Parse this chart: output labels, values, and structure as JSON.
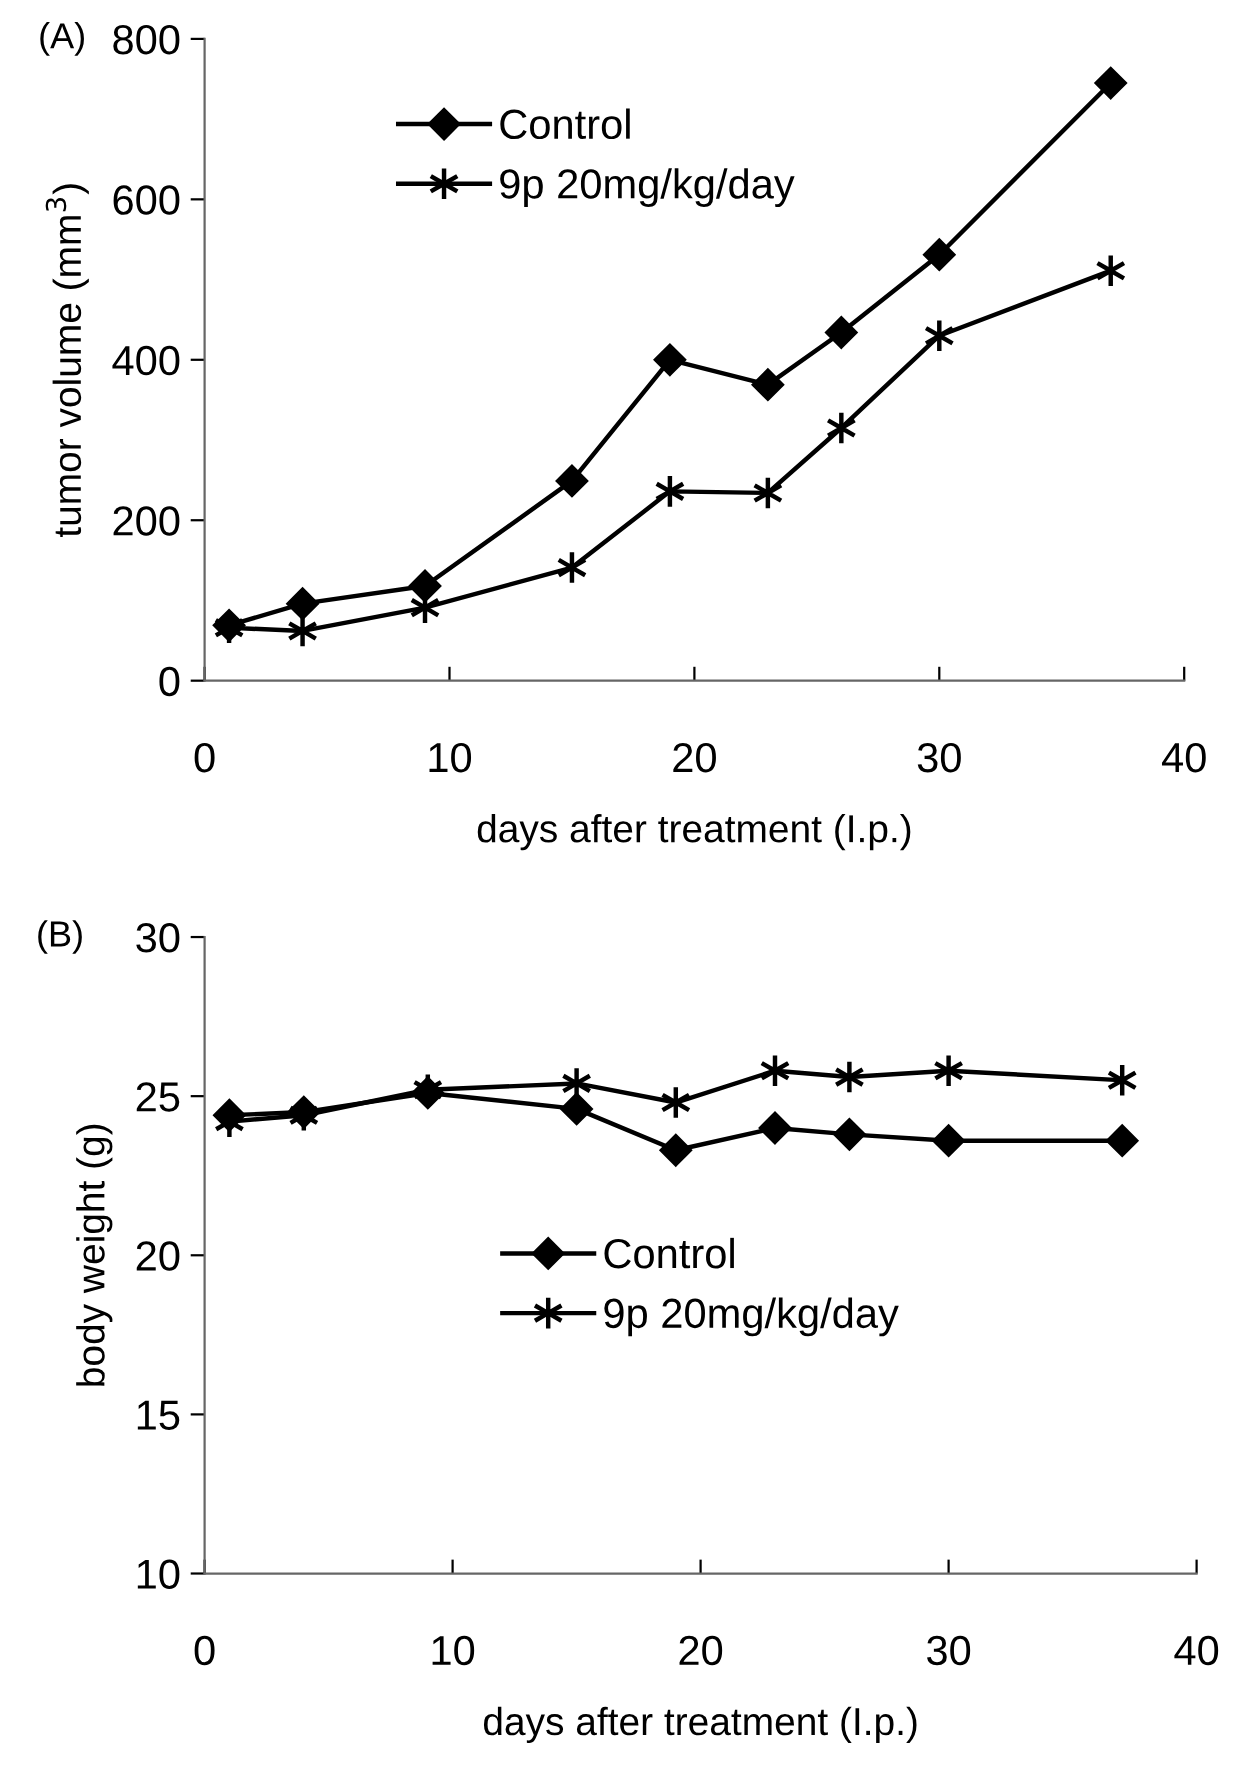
{
  "chart_data": [
    {
      "type": "line",
      "xlabel": "days after treatment (I.p.)",
      "ylabel": "tumor volume (mm$^{3}$)",
      "annotations": [
        "(A)"
      ],
      "xlim": [
        0,
        40
      ],
      "xticks": [
        0,
        10,
        20,
        30,
        40
      ],
      "ylim": [
        0,
        800
      ],
      "yticks": [
        0,
        200,
        400,
        600,
        800
      ],
      "grid": false,
      "legend": "top",
      "series": [
        {
          "name": "Control",
          "color": "#000000",
          "marker": "diamond",
          "x": [
            1,
            4,
            9,
            15,
            19,
            23,
            26,
            30,
            37
          ],
          "values": [
            69,
            96,
            118,
            249,
            400,
            369,
            434,
            531,
            745
          ]
        },
        {
          "name": "9p 20mg/kg/day",
          "color": "#000000",
          "marker": "cross",
          "x": [
            1,
            4,
            9,
            15,
            19,
            23,
            26,
            30,
            37
          ],
          "values": [
            66,
            62,
            91,
            141,
            236,
            234,
            315,
            430,
            511
          ]
        }
      ]
    },
    {
      "type": "line",
      "xlabel": "days after treatment (I.p.)",
      "ylabel": "body weight (g)",
      "annotations": [
        "(B)"
      ],
      "xlim": [
        0,
        40
      ],
      "xticks": [
        0,
        10,
        20,
        30,
        40
      ],
      "ylim": [
        10,
        30
      ],
      "yticks": [
        10,
        15,
        20,
        25,
        30
      ],
      "grid": false,
      "legend": "center",
      "series": [
        {
          "name": "Control",
          "color": "#000000",
          "marker": "diamond",
          "x": [
            1,
            4,
            9,
            15,
            19,
            23,
            26,
            30,
            37
          ],
          "values": [
            24.4,
            24.5,
            25.1,
            24.6,
            23.3,
            24.0,
            23.8,
            23.6,
            23.6
          ]
        },
        {
          "name": "9p 20mg/kg/day",
          "color": "#000000",
          "marker": "cross",
          "x": [
            1,
            4,
            9,
            15,
            19,
            23,
            26,
            30,
            37
          ],
          "values": [
            24.2,
            24.4,
            25.2,
            25.4,
            24.8,
            25.8,
            25.6,
            25.8,
            25.5
          ]
        }
      ]
    }
  ]
}
